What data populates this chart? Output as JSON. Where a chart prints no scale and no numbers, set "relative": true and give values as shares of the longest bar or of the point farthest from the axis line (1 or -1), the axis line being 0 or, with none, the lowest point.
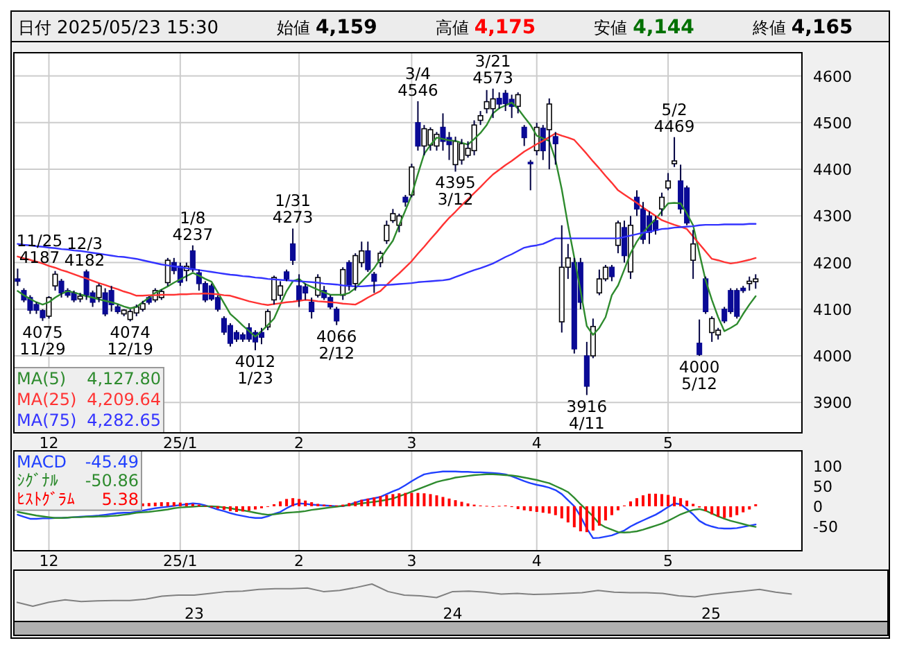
{
  "chart_data": [
    {
      "type": "other",
      "annotations": [
        "日付",
        "2025/05/23 15:30",
        "始値",
        "4,159",
        "高値",
        "4,175",
        "安値",
        "4,144",
        "終値",
        "4,165"
      ]
    },
    {
      "type": "candlestick",
      "grid": true,
      "legend": "bottom left",
      "ylim": [
        3835,
        4650
      ],
      "yticks": [
        3900,
        4000,
        4100,
        4200,
        4300,
        4400,
        4500,
        4600
      ],
      "categories": [
        null,
        null,
        null,
        null,
        null,
        "12",
        null,
        null,
        null,
        null,
        null,
        null,
        null,
        null,
        null,
        null,
        null,
        null,
        null,
        null,
        null,
        null,
        null,
        null,
        null,
        null,
        "25/1",
        null,
        null,
        null,
        null,
        null,
        null,
        null,
        null,
        null,
        null,
        null,
        null,
        null,
        null,
        null,
        null,
        null,
        null,
        "2",
        null,
        null,
        null,
        null,
        null,
        null,
        null,
        null,
        null,
        null,
        null,
        null,
        null,
        null,
        null,
        null,
        null,
        "3",
        null,
        null,
        null,
        null,
        null,
        null,
        null,
        null,
        null,
        null,
        null,
        null,
        null,
        null,
        null,
        null,
        null,
        null,
        null,
        "4",
        null,
        null,
        null,
        null,
        null,
        null,
        null,
        null,
        null,
        null,
        null,
        null,
        null,
        null,
        null,
        null,
        null,
        null,
        null,
        null,
        "5",
        null,
        null,
        null,
        null,
        null,
        null,
        null,
        null,
        null,
        null,
        null,
        null,
        null,
        null
      ],
      "ohlc": [
        [
          4165,
          4187,
          4150,
          4160
        ],
        [
          4140,
          4145,
          4115,
          4120
        ],
        [
          4125,
          4130,
          4090,
          4098
        ],
        [
          4110,
          4115,
          4090,
          4098
        ],
        [
          4097,
          4100,
          4075,
          4082
        ],
        [
          4085,
          4128,
          4080,
          4125
        ],
        [
          4150,
          4182,
          4140,
          4175
        ],
        [
          4160,
          4165,
          4125,
          4135
        ],
        [
          4140,
          4145,
          4125,
          4130
        ],
        [
          4135,
          4140,
          4115,
          4120
        ],
        [
          4122,
          4135,
          4115,
          4128
        ],
        [
          4180,
          4185,
          4120,
          4130
        ],
        [
          4135,
          4140,
          4105,
          4115
        ],
        [
          4125,
          4155,
          4115,
          4150
        ],
        [
          4135,
          4145,
          4085,
          4090
        ],
        [
          4140,
          4150,
          4095,
          4110
        ],
        [
          4105,
          4110,
          4090,
          4095
        ],
        [
          4090,
          4100,
          4085,
          4098
        ],
        [
          4078,
          4100,
          4074,
          4095
        ],
        [
          4092,
          4110,
          4085,
          4105
        ],
        [
          4100,
          4118,
          4095,
          4112
        ],
        [
          4125,
          4128,
          4110,
          4115
        ],
        [
          4120,
          4145,
          4115,
          4140
        ],
        [
          4125,
          4142,
          4120,
          4138
        ],
        [
          4157,
          4210,
          4150,
          4205
        ],
        [
          4200,
          4210,
          4175,
          4183
        ],
        [
          4192,
          4200,
          4150,
          4158
        ],
        [
          4183,
          4200,
          4160,
          4192
        ],
        [
          4225,
          4237,
          4180,
          4185
        ],
        [
          4178,
          4185,
          4140,
          4155
        ],
        [
          4155,
          4160,
          4115,
          4120
        ],
        [
          4150,
          4155,
          4118,
          4122
        ],
        [
          4125,
          4130,
          4095,
          4100
        ],
        [
          4080,
          4085,
          4045,
          4051
        ],
        [
          4065,
          4070,
          4020,
          4027
        ],
        [
          4050,
          4055,
          4030,
          4036
        ],
        [
          4045,
          4050,
          4030,
          4036
        ],
        [
          4060,
          4070,
          4030,
          4036
        ],
        [
          4050,
          4055,
          4012,
          4030
        ],
        [
          4050,
          4060,
          4025,
          4040
        ],
        [
          4062,
          4100,
          4055,
          4095
        ],
        [
          4120,
          4172,
          4110,
          4168
        ],
        [
          4130,
          4160,
          4120,
          4150
        ],
        [
          4180,
          4185,
          4160,
          4165
        ],
        [
          4240,
          4273,
          4195,
          4205
        ],
        [
          4150,
          4175,
          4105,
          4120
        ],
        [
          4148,
          4155,
          4120,
          4135
        ],
        [
          4115,
          4125,
          4080,
          4095
        ],
        [
          4130,
          4175,
          4125,
          4168
        ],
        [
          4140,
          4150,
          4120,
          4125
        ],
        [
          4125,
          4130,
          4100,
          4105
        ],
        [
          4100,
          4105,
          4066,
          4075
        ],
        [
          4130,
          4190,
          4120,
          4185
        ],
        [
          4200,
          4205,
          4140,
          4150
        ],
        [
          4155,
          4220,
          4140,
          4215
        ],
        [
          4200,
          4245,
          4190,
          4225
        ],
        [
          4225,
          4245,
          4180,
          4185
        ],
        [
          4175,
          4180,
          4135,
          4160
        ],
        [
          4200,
          4225,
          4190,
          4220
        ],
        [
          4247,
          4290,
          4240,
          4280
        ],
        [
          4290,
          4315,
          4285,
          4305
        ],
        [
          4280,
          4305,
          4265,
          4300
        ],
        [
          4340,
          4345,
          4320,
          4330
        ],
        [
          4345,
          4412,
          4340,
          4405
        ],
        [
          4500,
          4546,
          4440,
          4450
        ],
        [
          4450,
          4495,
          4430,
          4487
        ],
        [
          4452,
          4490,
          4440,
          4485
        ],
        [
          4450,
          4480,
          4440,
          4475
        ],
        [
          4490,
          4520,
          4440,
          4460
        ],
        [
          4468,
          4480,
          4420,
          4453
        ],
        [
          4410,
          4470,
          4395,
          4460
        ],
        [
          4420,
          4465,
          4410,
          4455
        ],
        [
          4430,
          4460,
          4425,
          4445
        ],
        [
          4440,
          4505,
          4430,
          4495
        ],
        [
          4505,
          4525,
          4495,
          4515
        ],
        [
          4530,
          4570,
          4520,
          4545
        ],
        [
          4530,
          4573,
          4510,
          4551
        ],
        [
          4552,
          4565,
          4530,
          4540
        ],
        [
          4563,
          4570,
          4525,
          4541
        ],
        [
          4550,
          4560,
          4510,
          4535
        ],
        [
          4535,
          4565,
          4520,
          4560
        ],
        [
          4490,
          4495,
          4450,
          4468
        ],
        [
          4415,
          4420,
          4355,
          4412
        ],
        [
          4440,
          4500,
          4430,
          4490
        ],
        [
          4488,
          4495,
          4420,
          4440
        ],
        [
          4485,
          4552,
          4400,
          4540
        ],
        [
          4470,
          4480,
          4410,
          4455
        ],
        [
          4073,
          4280,
          4050,
          4190
        ],
        [
          4190,
          4240,
          4165,
          4210
        ],
        [
          4200,
          4210,
          4005,
          4015
        ],
        [
          4200,
          4210,
          4100,
          4115
        ],
        [
          4000,
          4030,
          3916,
          3935
        ],
        [
          4000,
          4080,
          3995,
          4063
        ],
        [
          4135,
          4185,
          4130,
          4165
        ],
        [
          4165,
          4195,
          4160,
          4190
        ],
        [
          4190,
          4195,
          4160,
          4170
        ],
        [
          4237,
          4290,
          4220,
          4285
        ],
        [
          4275,
          4290,
          4200,
          4215
        ],
        [
          4180,
          4300,
          4165,
          4280
        ],
        [
          4340,
          4355,
          4300,
          4315
        ],
        [
          4315,
          4330,
          4240,
          4250
        ],
        [
          4300,
          4310,
          4240,
          4265
        ],
        [
          4290,
          4300,
          4260,
          4270
        ],
        [
          4315,
          4350,
          4300,
          4340
        ],
        [
          4360,
          4392,
          4355,
          4375
        ],
        [
          4412,
          4469,
          4405,
          4418
        ],
        [
          4375,
          4410,
          4305,
          4315
        ],
        [
          4360,
          4365,
          4280,
          4285
        ],
        [
          4205,
          4270,
          4165,
          4240
        ],
        [
          4027,
          4078,
          4000,
          4003
        ],
        [
          4165,
          4170,
          4090,
          4095
        ],
        [
          4050,
          4085,
          4030,
          4080
        ],
        [
          4045,
          4060,
          4035,
          4055
        ],
        [
          4100,
          4105,
          4070,
          4075
        ],
        [
          4140,
          4145,
          4090,
          4095
        ],
        [
          4140,
          4145,
          4080,
          4085
        ],
        [
          4145,
          4150,
          4135,
          4140
        ],
        [
          4155,
          4170,
          4140,
          4160
        ],
        [
          4159,
          4175,
          4144,
          4165
        ]
      ],
      "series": [
        {
          "name": "MA(5)",
          "type": "line",
          "color": "#2e8b2e",
          "values": [
            4139,
            4130,
            4122,
            4115,
            4110,
            4115,
            4125,
            4133,
            4139,
            4136,
            4132,
            4128,
            4125,
            4121,
            4118,
            4115,
            4111,
            4106,
            4102,
            4105,
            4115,
            4125,
            4135,
            4142,
            4149,
            4157,
            4164,
            4171,
            4178,
            4172,
            4165,
            4159,
            4136,
            4113,
            4090,
            4078,
            4065,
            4053,
            4041,
            4053,
            4066,
            4080,
            4110,
            4139,
            4160,
            4165,
            4154,
            4148,
            4142,
            4136,
            4131,
            4131,
            4131,
            4135,
            4145,
            4159,
            4173,
            4188,
            4208,
            4228,
            4247,
            4280,
            4312,
            4345,
            4390,
            4433,
            4452,
            4468,
            4465,
            4462,
            4461,
            4457,
            4453,
            4465,
            4478,
            4495,
            4520,
            4531,
            4537,
            4543,
            4530,
            4512,
            4495,
            4472,
            4466,
            4461,
            4420,
            4357,
            4280,
            4211,
            4140,
            4064,
            4045,
            4060,
            4083,
            4130,
            4151,
            4185,
            4220,
            4245,
            4264,
            4280,
            4293,
            4310,
            4327,
            4328,
            4327,
            4305,
            4280,
            4220,
            4162,
            4120,
            4083,
            4053,
            4060,
            4068,
            4090,
            4110,
            4128
          ]
        },
        {
          "name": "MA(25)",
          "type": "line",
          "color": "#ff3333",
          "values": [
            4213,
            4209,
            4206,
            4202,
            4198,
            4193,
            4189,
            4184,
            4180,
            4175,
            4170,
            4166,
            4161,
            4156,
            4152,
            4147,
            4143,
            4138,
            4134,
            4129,
            4129,
            4130,
            4130,
            4131,
            4131,
            4131,
            4132,
            4132,
            4133,
            4133,
            4134,
            4133,
            4132,
            4130,
            4129,
            4125,
            4121,
            4117,
            4114,
            4111,
            4109,
            4111,
            4113,
            4115,
            4116,
            4118,
            4120,
            4119,
            4117,
            4116,
            4115,
            4114,
            4112,
            4111,
            4110,
            4117,
            4125,
            4132,
            4139,
            4152,
            4165,
            4177,
            4190,
            4203,
            4219,
            4234,
            4250,
            4265,
            4281,
            4296,
            4309,
            4323,
            4336,
            4349,
            4362,
            4376,
            4389,
            4399,
            4409,
            4418,
            4428,
            4438,
            4446,
            4454,
            4461,
            4469,
            4477,
            4472,
            4468,
            4463,
            4448,
            4433,
            4417,
            4402,
            4386,
            4371,
            4355,
            4346,
            4337,
            4328,
            4318,
            4309,
            4300,
            4291,
            4286,
            4281,
            4277,
            4272,
            4256,
            4240,
            4224,
            4208,
            4205,
            4201,
            4198,
            4200,
            4203,
            4206,
            4210
          ]
        },
        {
          "name": "MA(75)",
          "type": "line",
          "color": "#3333ff",
          "values": [
            4240,
            4238,
            4237,
            4235,
            4234,
            4232,
            4231,
            4229,
            4228,
            4226,
            4225,
            4223,
            4221,
            4219,
            4217,
            4215,
            4213,
            4212,
            4210,
            4208,
            4205,
            4202,
            4199,
            4196,
            4194,
            4192,
            4190,
            4188,
            4186,
            4184,
            4182,
            4180,
            4178,
            4176,
            4174,
            4173,
            4171,
            4170,
            4168,
            4167,
            4165,
            4164,
            4163,
            4162,
            4161,
            4160,
            4159,
            4158,
            4157,
            4155,
            4154,
            4153,
            4151,
            4150,
            4149,
            4149,
            4150,
            4151,
            4152,
            4152,
            4153,
            4154,
            4155,
            4156,
            4158,
            4159,
            4160,
            4161,
            4162,
            4164,
            4169,
            4174,
            4179,
            4184,
            4188,
            4193,
            4198,
            4205,
            4212,
            4218,
            4225,
            4232,
            4235,
            4237,
            4240,
            4246,
            4252,
            4252,
            4252,
            4252,
            4252,
            4252,
            4252,
            4252,
            4252,
            4252,
            4252,
            4255,
            4258,
            4261,
            4264,
            4266,
            4269,
            4272,
            4273,
            4275,
            4276,
            4277,
            4278,
            4280,
            4281,
            4281,
            4281,
            4282,
            4282,
            4282,
            4282,
            4283,
            4283
          ]
        }
      ],
      "annotations": [
        {
          "text": "11/25\n4187",
          "y": 4187
        },
        {
          "text": "12/3\n4182",
          "y": 4182
        },
        {
          "text": "4075\n11/29",
          "y": 4075
        },
        {
          "text": "4074\n12/19",
          "y": 4074
        },
        {
          "text": "1/8\n4237",
          "y": 4237
        },
        {
          "text": "4012\n1/23",
          "y": 4012
        },
        {
          "text": "1/31\n4273",
          "y": 4273
        },
        {
          "text": "4066\n2/12",
          "y": 4066
        },
        {
          "text": "3/4\n4546",
          "y": 4546
        },
        {
          "text": "4395\n3/12",
          "y": 4395
        },
        {
          "text": "3/21\n4573",
          "y": 4573
        },
        {
          "text": "3916\n4/11",
          "y": 3916
        },
        {
          "text": "5/2\n4469",
          "y": 4469
        },
        {
          "text": "4000\n5/12",
          "y": 4000
        },
        "4,127.80",
        "4,209.64",
        "4,282.65"
      ]
    },
    {
      "type": "line",
      "grid": "x",
      "legend": "top left",
      "ylim": [
        -110,
        137
      ],
      "yticks": [
        -50,
        0,
        50,
        100
      ],
      "annotations": [
        "-45.49",
        "-50.86",
        "5.38"
      ],
      "categories": [
        null,
        null,
        null,
        null,
        null,
        "12",
        null,
        null,
        null,
        null,
        null,
        null,
        null,
        null,
        null,
        null,
        null,
        null,
        null,
        null,
        null,
        null,
        null,
        null,
        null,
        null,
        "25/1",
        null,
        null,
        null,
        null,
        null,
        null,
        null,
        null,
        null,
        null,
        null,
        null,
        null,
        null,
        null,
        null,
        null,
        null,
        "2",
        null,
        null,
        null,
        null,
        null,
        null,
        null,
        null,
        null,
        null,
        null,
        null,
        null,
        null,
        null,
        null,
        null,
        "3",
        null,
        null,
        null,
        null,
        null,
        null,
        null,
        null,
        null,
        null,
        null,
        null,
        null,
        null,
        null,
        null,
        null,
        null,
        null,
        "4",
        null,
        null,
        null,
        null,
        null,
        null,
        null,
        null,
        null,
        null,
        null,
        null,
        null,
        null,
        null,
        null,
        null,
        null,
        null,
        null,
        "5",
        null,
        null,
        null,
        null,
        null,
        null,
        null,
        null,
        null,
        null,
        null,
        null,
        null,
        null
      ],
      "series": [
        {
          "name": "MACD",
          "type": "line",
          "color": "#2040ff",
          "values": [
            -21,
            -26,
            -31,
            -31,
            -30,
            -30,
            -29,
            -29,
            -28,
            -27,
            -26,
            -25,
            -24,
            -23,
            -21,
            -19,
            -17,
            -16,
            -16,
            -14,
            -11,
            -8,
            -5,
            -3,
            -1,
            1,
            3,
            5,
            7,
            6,
            2,
            -3,
            -8,
            -12,
            -17,
            -21,
            -24,
            -27,
            -29,
            -29,
            -25,
            -19,
            -14,
            -5,
            3,
            7,
            6,
            4,
            3,
            2,
            1,
            0,
            0,
            4,
            9,
            14,
            17,
            20,
            23,
            30,
            37,
            43,
            52,
            62,
            71,
            79,
            82,
            84,
            86,
            86,
            86,
            85,
            85,
            84,
            84,
            83,
            82,
            81,
            79,
            74,
            68,
            62,
            57,
            53,
            50,
            46,
            40,
            30,
            15,
            0,
            -25,
            -55,
            -79,
            -78,
            -75,
            -72,
            -66,
            -60,
            -50,
            -42,
            -35,
            -28,
            -21,
            -12,
            -2,
            7,
            5,
            -7,
            -20,
            -36,
            -45,
            -50,
            -54,
            -55,
            -55,
            -54,
            -51,
            -48,
            -45
          ]
        },
        {
          "name": "ｼｸﾞﾅﾙ",
          "type": "line",
          "color": "#2e8b2e",
          "values": [
            -14,
            -17,
            -20,
            -23,
            -25,
            -27,
            -29,
            -29,
            -28,
            -27,
            -27,
            -26,
            -26,
            -25,
            -25,
            -24,
            -23,
            -21,
            -19,
            -16,
            -15,
            -14,
            -12,
            -10,
            -8,
            -5,
            -3,
            -2,
            -1,
            0,
            0,
            0,
            -1,
            -3,
            -5,
            -8,
            -10,
            -13,
            -16,
            -19,
            -21,
            -20,
            -18,
            -16,
            -15,
            -14,
            -12,
            -9,
            -7,
            -5,
            -3,
            -1,
            1,
            3,
            5,
            7,
            9,
            11,
            13,
            16,
            19,
            25,
            30,
            36,
            42,
            48,
            54,
            60,
            64,
            67,
            71,
            73,
            75,
            77,
            78,
            79,
            79,
            78,
            77,
            76,
            74,
            71,
            68,
            65,
            61,
            57,
            50,
            43,
            35,
            21,
            5,
            -10,
            -25,
            -43,
            -52,
            -58,
            -64,
            -65,
            -64,
            -62,
            -58,
            -53,
            -48,
            -43,
            -36,
            -28,
            -20,
            -14,
            -9,
            -7,
            -11,
            -18,
            -25,
            -31,
            -36,
            -40,
            -44,
            -48,
            -51
          ]
        },
        {
          "name": "ﾋｽﾄｸﾞﾗﾑ",
          "type": "bar",
          "color": "#ff0000",
          "values": [
            null,
            null,
            null,
            null,
            null,
            null,
            null,
            null,
            null,
            null,
            null,
            null,
            null,
            null,
            null,
            null,
            null,
            null,
            null,
            null,
            7,
            8,
            9,
            10,
            10,
            10,
            9,
            8,
            6,
            4,
            1,
            -3,
            -6,
            -9,
            -12,
            -14,
            -13,
            -11,
            -8,
            -5,
            -1,
            5,
            12,
            18,
            20,
            18,
            14,
            10,
            6,
            4,
            3,
            2,
            4,
            8,
            12,
            16,
            19,
            22,
            25,
            28,
            30,
            32,
            33,
            33,
            33,
            32,
            30,
            27,
            23,
            19,
            15,
            11,
            7,
            4,
            2,
            1,
            0,
            1,
            2,
            -2,
            -7,
            -10,
            -12,
            -14,
            -16,
            -18,
            -22,
            -30,
            -40,
            -52,
            -62,
            -64,
            -60,
            -48,
            -35,
            -22,
            -10,
            2,
            12,
            20,
            27,
            31,
            31,
            30,
            28,
            24,
            20,
            14,
            6,
            -3,
            -12,
            -20,
            -26,
            -29,
            -27,
            -22,
            -15,
            -8,
            5
          ]
        }
      ]
    },
    {
      "type": "line",
      "relative": true,
      "categories": [
        null,
        null,
        null,
        null,
        null,
        null,
        null,
        null,
        null,
        null,
        null,
        "23",
        null,
        null,
        null,
        null,
        null,
        null,
        null,
        null,
        null,
        null,
        null,
        null,
        null,
        null,
        null,
        "24",
        null,
        null,
        null,
        null,
        null,
        null,
        null,
        null,
        null,
        null,
        null,
        null,
        null,
        null,
        null,
        "25",
        null,
        null,
        null,
        null,
        null
      ],
      "series": [
        {
          "color": "#808080",
          "values": [
            0.18,
            0,
            0.18,
            0.29,
            0.21,
            0.24,
            0.26,
            0.26,
            0.32,
            0.45,
            0.5,
            0.5,
            0.58,
            0.66,
            0.68,
            0.76,
            0.79,
            0.79,
            0.82,
            0.66,
            0.71,
            0.84,
            1,
            0.66,
            0.5,
            0.47,
            0.39,
            0.66,
            0.68,
            0.63,
            0.55,
            0.58,
            0.53,
            0.55,
            0.58,
            0.61,
            0.71,
            0.63,
            0.61,
            0.61,
            0.58,
            0.47,
            0.42,
            0.53,
            0.61,
            0.68,
            0.76,
            0.63,
            0.55
          ]
        }
      ]
    }
  ]
}
